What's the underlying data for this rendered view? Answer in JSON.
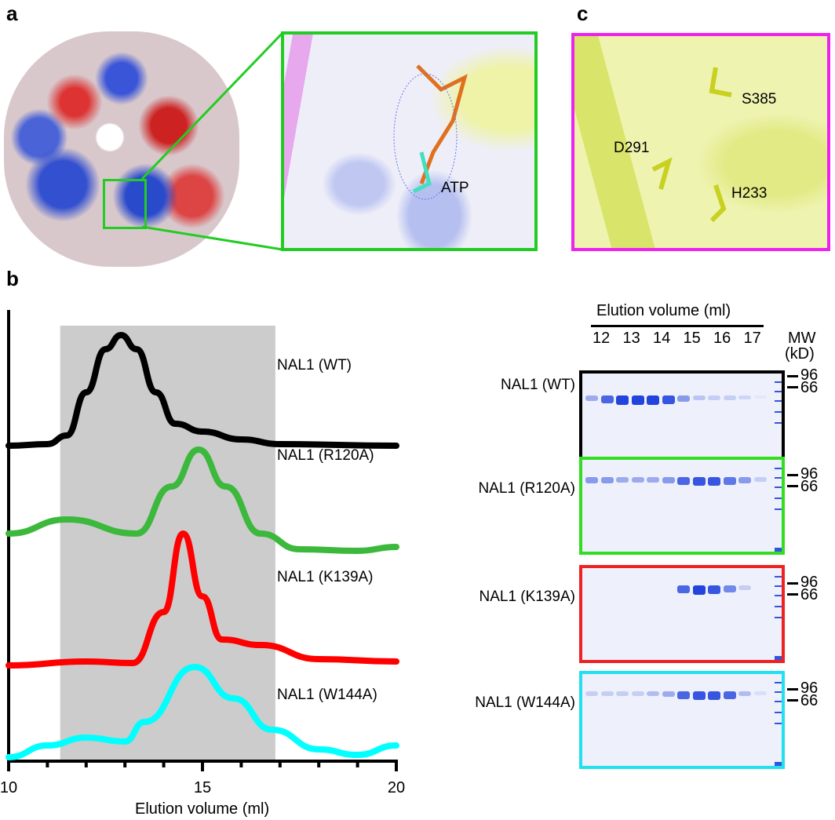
{
  "panels": {
    "a": "a",
    "b": "b",
    "c": "c"
  },
  "panel_a": {
    "ligand_label": "ATP"
  },
  "panel_c": {
    "residues": [
      "S385",
      "D291",
      "H233"
    ]
  },
  "chart_data": {
    "type": "line",
    "title": "",
    "xlabel": "Elution volume (ml)",
    "ylabel": "",
    "xlim": [
      10,
      20
    ],
    "xticks": [
      "10",
      "15",
      "20"
    ],
    "shaded_region": [
      11.33,
      16.88
    ],
    "series": [
      {
        "name": "NAL1 (WT)",
        "color": "#000000",
        "x": [
          10,
          11,
          11.5,
          12,
          12.5,
          12.9,
          13.3,
          13.8,
          14.3,
          15,
          16,
          17,
          20
        ],
        "y": [
          0,
          2,
          13,
          68,
          123,
          141,
          123,
          68,
          28,
          18,
          8,
          2,
          0
        ]
      },
      {
        "name": "NAL1 (R120A)",
        "color": "#3cb93c",
        "x": [
          10,
          11.5,
          13.3,
          14.2,
          14.9,
          15.6,
          16.5,
          17.5,
          19,
          20
        ],
        "y": [
          25,
          43,
          25,
          85,
          132,
          85,
          25,
          5,
          3,
          8
        ]
      },
      {
        "name": "NAL1 (K139A)",
        "color": "#ff0000",
        "x": [
          10,
          12,
          13.2,
          14,
          14.5,
          15,
          15.5,
          16.5,
          18,
          20
        ],
        "y": [
          2,
          7,
          5,
          70,
          170,
          90,
          35,
          28,
          10,
          7
        ]
      },
      {
        "name": "NAL1 (W144A)",
        "color": "#00ffff",
        "x": [
          10,
          11,
          12,
          13,
          13.5,
          14.8,
          15.8,
          16.8,
          18,
          19,
          20
        ],
        "y": [
          3,
          18,
          28,
          23,
          48,
          118,
          78,
          38,
          13,
          6,
          18
        ]
      }
    ]
  },
  "gels": {
    "header": "Elution volume (ml)",
    "lanes": [
      "12",
      "13",
      "14",
      "15",
      "16",
      "17"
    ],
    "mw_title": "MW",
    "mw_unit": "(kD)",
    "markers": [
      "96",
      "66"
    ],
    "rows": [
      {
        "label": "NAL1 (WT)",
        "color": "#000000",
        "intensity": [
          0.4,
          0.8,
          1,
          1,
          1,
          0.9,
          0.5,
          0.25,
          0.2,
          0.2,
          0.15,
          0.05
        ]
      },
      {
        "label": "NAL1 (R120A)",
        "color": "#33dd22",
        "intensity": [
          0.5,
          0.5,
          0.4,
          0.4,
          0.4,
          0.5,
          0.8,
          0.9,
          0.9,
          0.7,
          0.5,
          0.2
        ]
      },
      {
        "label": "NAL1 (K139A)",
        "color": "#ee2222",
        "intensity": [
          0,
          0,
          0,
          0,
          0,
          0,
          0.8,
          1,
          0.9,
          0.6,
          0.2,
          0
        ]
      },
      {
        "label": "NAL1 (W144A)",
        "color": "#22e0f0",
        "intensity": [
          0.2,
          0.2,
          0.2,
          0.2,
          0.3,
          0.4,
          0.8,
          0.9,
          0.9,
          0.8,
          0.3,
          0.1
        ]
      }
    ]
  }
}
